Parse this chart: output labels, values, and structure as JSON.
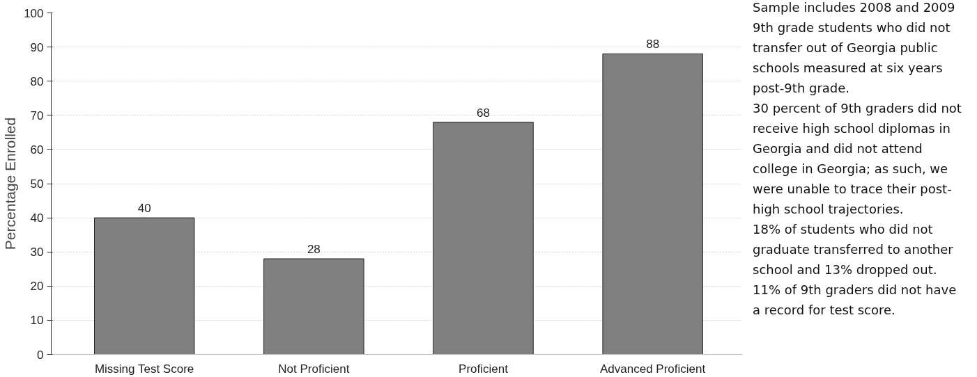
{
  "chart_data": {
    "type": "bar",
    "ylabel": "Percentage Enrolled",
    "categories": [
      "Missing Test Score",
      "Not Proficient",
      "Proficient",
      "Advanced Proficient"
    ],
    "values": [
      40,
      28,
      68,
      88
    ],
    "color": "#808080",
    "ylim": [
      0,
      100
    ],
    "yticks": [
      0,
      10,
      20,
      30,
      40,
      50,
      60,
      70,
      80,
      90,
      100
    ],
    "grid": "y",
    "data_labels": true,
    "annotations": [
      "Sample includes 2008 and 2009 9th grade students who did not transfer out of Georgia public schools measured at six years post-9th grade.",
      "30 percent of 9th graders did not receive high school diplomas in Georgia and did not attend college in Georgia; as such, we were unable to trace their post-high school trajectories.",
      "18% of students who did not graduate transferred to another school and 13% dropped out.",
      "11% of 9th graders did not have a record for test score."
    ]
  }
}
